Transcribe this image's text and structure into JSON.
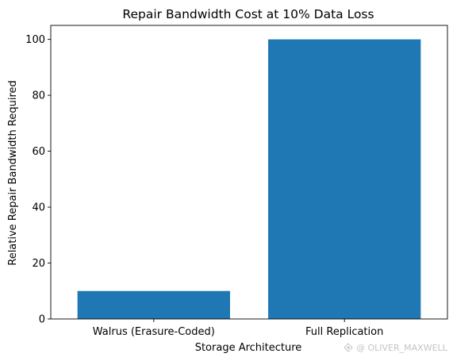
{
  "chart_data": {
    "type": "bar",
    "title": "Repair Bandwidth Cost at 10% Data Loss",
    "xlabel": "Storage Architecture",
    "ylabel": "Relative Repair Bandwidth Required",
    "categories": [
      "Walrus (Erasure-Coded)",
      "Full Replication"
    ],
    "values": [
      10,
      100
    ],
    "ylim": [
      0,
      105
    ],
    "yticks": [
      0,
      20,
      40,
      60,
      80,
      100
    ],
    "grid": false,
    "bar_color": "#1f77b4"
  },
  "watermark": "@ OLIVER_MAXWELL"
}
